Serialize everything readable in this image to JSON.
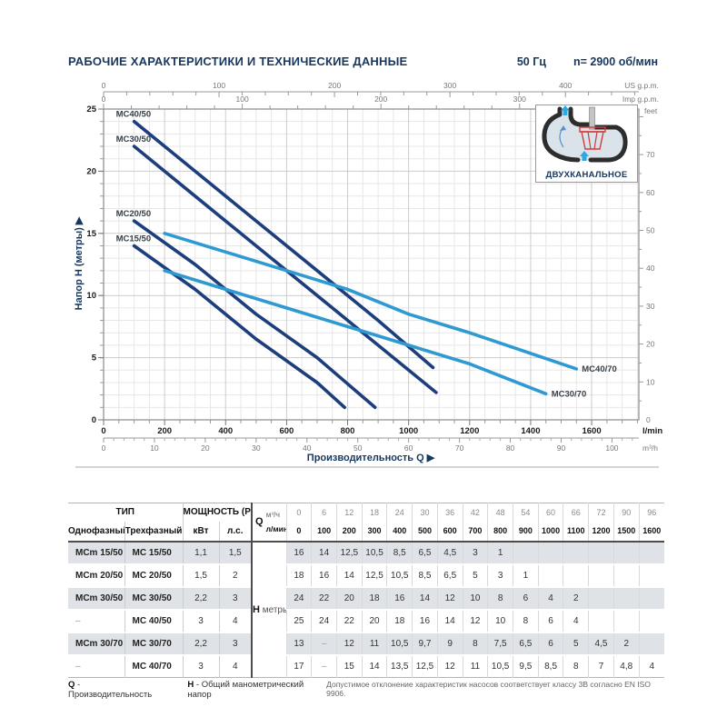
{
  "header": {
    "title": "РАБОЧИЕ ХАРАКТЕРИСТИКИ И ТЕХНИЧЕСКИЕ ДАННЫЕ",
    "frequency": "50 Гц",
    "speed": "n= 2900 об/мин"
  },
  "inset": {
    "label": "ДВУХКАНАЛЬНОЕ"
  },
  "chart_data": {
    "type": "line",
    "xlabel": "Производительность Q  ▶",
    "ylabel": "Напор H (метры)  ▶",
    "x_axis_bottom": {
      "unit": "l/min",
      "ticks": [
        0,
        200,
        400,
        600,
        800,
        1000,
        1200,
        1400,
        1600
      ],
      "minor_step": 50,
      "max": 1755
    },
    "x_axis_m3h": {
      "unit": "m³/h",
      "ticks": [
        0,
        10,
        20,
        30,
        40,
        50,
        60,
        70,
        80,
        90,
        100
      ],
      "minor_step": 2,
      "lmin_per_unit": 16.667
    },
    "x_axis_us": {
      "unit": "US g.p.m.",
      "ticks": [
        0,
        100,
        200,
        300,
        400
      ],
      "minor_step": 20,
      "lmin_per_unit": 3.785
    },
    "x_axis_imp": {
      "unit": "Imp g.p.m.",
      "ticks": [
        0,
        100,
        200,
        300
      ],
      "minor_step": 20,
      "lmin_per_unit": 4.546
    },
    "y_axis_left": {
      "ticks": [
        0,
        5,
        10,
        15,
        20,
        25
      ],
      "minor_step": 1,
      "max": 25
    },
    "y_axis_right": {
      "unit": "feet",
      "ticks": [
        0,
        10,
        20,
        30,
        40,
        50,
        60,
        70
      ],
      "minor_step": 5,
      "m_per_unit": 0.3048
    },
    "series": [
      {
        "name": "MC40/50",
        "palette": "dark",
        "label_at": "start",
        "points": [
          [
            100,
            24
          ],
          [
            300,
            20
          ],
          [
            500,
            16
          ],
          [
            700,
            12
          ],
          [
            900,
            8
          ],
          [
            1080,
            4.2
          ]
        ]
      },
      {
        "name": "MC30/50",
        "palette": "dark",
        "label_at": "start",
        "points": [
          [
            100,
            22
          ],
          [
            300,
            18
          ],
          [
            500,
            14
          ],
          [
            700,
            10
          ],
          [
            900,
            6
          ],
          [
            1090,
            2.2
          ]
        ]
      },
      {
        "name": "MC20/50",
        "palette": "dark",
        "label_at": "start",
        "points": [
          [
            100,
            16
          ],
          [
            300,
            12.5
          ],
          [
            500,
            8.5
          ],
          [
            700,
            5
          ],
          [
            890,
            1
          ]
        ]
      },
      {
        "name": "MC15/50",
        "palette": "dark",
        "label_at": "start",
        "points": [
          [
            100,
            14
          ],
          [
            300,
            10.5
          ],
          [
            500,
            6.5
          ],
          [
            700,
            3
          ],
          [
            790,
            1
          ]
        ]
      },
      {
        "name": "MC40/70",
        "palette": "light",
        "label_at": "end",
        "points": [
          [
            200,
            15
          ],
          [
            400,
            13.5
          ],
          [
            600,
            12
          ],
          [
            800,
            10.5
          ],
          [
            1000,
            8.5
          ],
          [
            1200,
            7
          ],
          [
            1550,
            4.1
          ]
        ]
      },
      {
        "name": "MC30/70",
        "palette": "light",
        "label_at": "end",
        "points": [
          [
            200,
            12
          ],
          [
            400,
            10.5
          ],
          [
            600,
            9
          ],
          [
            800,
            7.5
          ],
          [
            1000,
            6
          ],
          [
            1200,
            4.5
          ],
          [
            1450,
            2.1
          ]
        ]
      }
    ],
    "colors": {
      "dark": "#1d3e7c",
      "light": "#2f9ad2",
      "grid_minor": "#e7e7e7",
      "grid_major": "#cccccc",
      "border": "#8a8a8a",
      "accent": "#17375e"
    }
  },
  "table": {
    "col_headers": {
      "type_group": "ТИП",
      "power_group": "МОЩНОСТЬ (P2)",
      "single_phase": "Однофазный",
      "three_phase": "Трехфазный",
      "kw": "кВт",
      "hp": "л.с.",
      "q_label": "Q",
      "q_unit_top": "м³/ч",
      "q_unit_bottom": "л/мин",
      "h_label": "H",
      "h_unit": "метры",
      "m3h_values": [
        "0",
        "6",
        "12",
        "18",
        "24",
        "30",
        "36",
        "42",
        "48",
        "54",
        "60",
        "66",
        "72",
        "90",
        "96"
      ],
      "lmin_values": [
        "0",
        "100",
        "200",
        "300",
        "400",
        "500",
        "600",
        "700",
        "800",
        "900",
        "1000",
        "1100",
        "1200",
        "1500",
        "1600"
      ]
    },
    "rows": [
      {
        "mono": "MCm 15/50",
        "tri": "MC 15/50",
        "kw": "1,1",
        "hp": "1,5",
        "h": [
          "16",
          "14",
          "12,5",
          "10,5",
          "8,5",
          "6,5",
          "4,5",
          "3",
          "1",
          "",
          "",
          "",
          "",
          "",
          ""
        ]
      },
      {
        "mono": "MCm 20/50",
        "tri": "MC 20/50",
        "kw": "1,5",
        "hp": "2",
        "h": [
          "18",
          "16",
          "14",
          "12,5",
          "10,5",
          "8,5",
          "6,5",
          "5",
          "3",
          "1",
          "",
          "",
          "",
          "",
          ""
        ]
      },
      {
        "mono": "MCm 30/50",
        "tri": "MC 30/50",
        "kw": "2,2",
        "hp": "3",
        "h": [
          "24",
          "22",
          "20",
          "18",
          "16",
          "14",
          "12",
          "10",
          "8",
          "6",
          "4",
          "2",
          "",
          "",
          ""
        ]
      },
      {
        "mono": "–",
        "tri": "MC 40/50",
        "kw": "3",
        "hp": "4",
        "h": [
          "25",
          "24",
          "22",
          "20",
          "18",
          "16",
          "14",
          "12",
          "10",
          "8",
          "6",
          "4",
          "",
          "",
          ""
        ]
      },
      {
        "mono": "MCm 30/70",
        "tri": "MC 30/70",
        "kw": "2,2",
        "hp": "3",
        "h": [
          "13",
          "–",
          "12",
          "11",
          "10,5",
          "9,7",
          "9",
          "8",
          "7,5",
          "6,5",
          "6",
          "5",
          "4,5",
          "2",
          ""
        ]
      },
      {
        "mono": "–",
        "tri": "MC 40/70",
        "kw": "3",
        "hp": "4",
        "h": [
          "17",
          "–",
          "15",
          "14",
          "13,5",
          "12,5",
          "12",
          "11",
          "10,5",
          "9,5",
          "8,5",
          "8",
          "7",
          "4,8",
          "4"
        ]
      }
    ]
  },
  "footer": {
    "items": [
      {
        "key": "Q",
        "text": "- Производительность"
      },
      {
        "key": "H",
        "text": "- Общий манометрический напор"
      }
    ],
    "note": "Допустимое отклонение характеристик насосов соответствует классу 3B согласно EN ISO 9906."
  }
}
